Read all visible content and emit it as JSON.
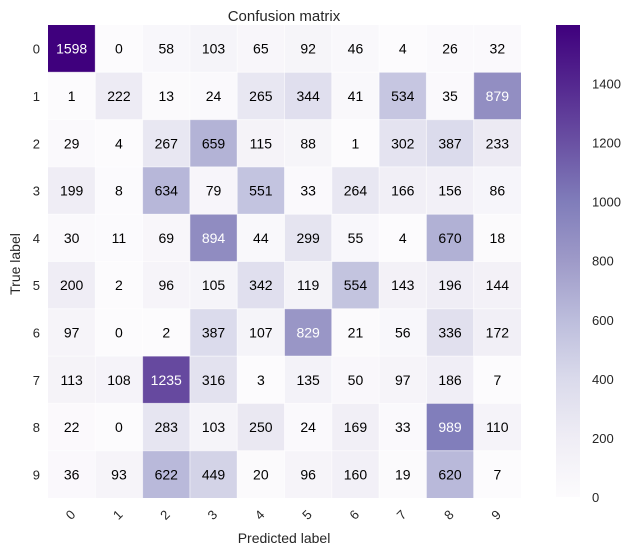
{
  "chart_data": {
    "type": "heatmap",
    "title": "Confusion matrix",
    "xlabel": "Predicted label",
    "ylabel": "True label",
    "x_tick_labels": [
      "0",
      "1",
      "2",
      "3",
      "4",
      "5",
      "6",
      "7",
      "8",
      "9"
    ],
    "y_tick_labels": [
      "0",
      "1",
      "2",
      "3",
      "4",
      "5",
      "6",
      "7",
      "8",
      "9"
    ],
    "matrix": [
      [
        1598,
        0,
        58,
        103,
        65,
        92,
        46,
        4,
        26,
        32
      ],
      [
        1,
        222,
        13,
        24,
        265,
        344,
        41,
        534,
        35,
        879
      ],
      [
        29,
        4,
        267,
        659,
        115,
        88,
        1,
        302,
        387,
        233
      ],
      [
        199,
        8,
        634,
        79,
        551,
        33,
        264,
        166,
        156,
        86
      ],
      [
        30,
        11,
        69,
        894,
        44,
        299,
        55,
        4,
        670,
        18
      ],
      [
        200,
        2,
        96,
        105,
        342,
        119,
        554,
        143,
        196,
        144
      ],
      [
        97,
        0,
        2,
        387,
        107,
        829,
        21,
        56,
        336,
        172
      ],
      [
        113,
        108,
        1235,
        316,
        3,
        135,
        50,
        97,
        186,
        7
      ],
      [
        22,
        0,
        283,
        103,
        250,
        24,
        169,
        33,
        989,
        110
      ],
      [
        36,
        93,
        622,
        449,
        20,
        96,
        160,
        19,
        620,
        7
      ]
    ],
    "colormap": "Purples",
    "vmin": 0,
    "vmax": 1598,
    "colorbar_ticks": [
      0,
      200,
      400,
      600,
      800,
      1000,
      1200,
      1400
    ],
    "grid": true,
    "colors": {
      "low": "#fcfbfd",
      "high": "#3f007d",
      "text_dark": "#000000",
      "text_light": "#ffffff",
      "grid": "#ffffff"
    }
  }
}
